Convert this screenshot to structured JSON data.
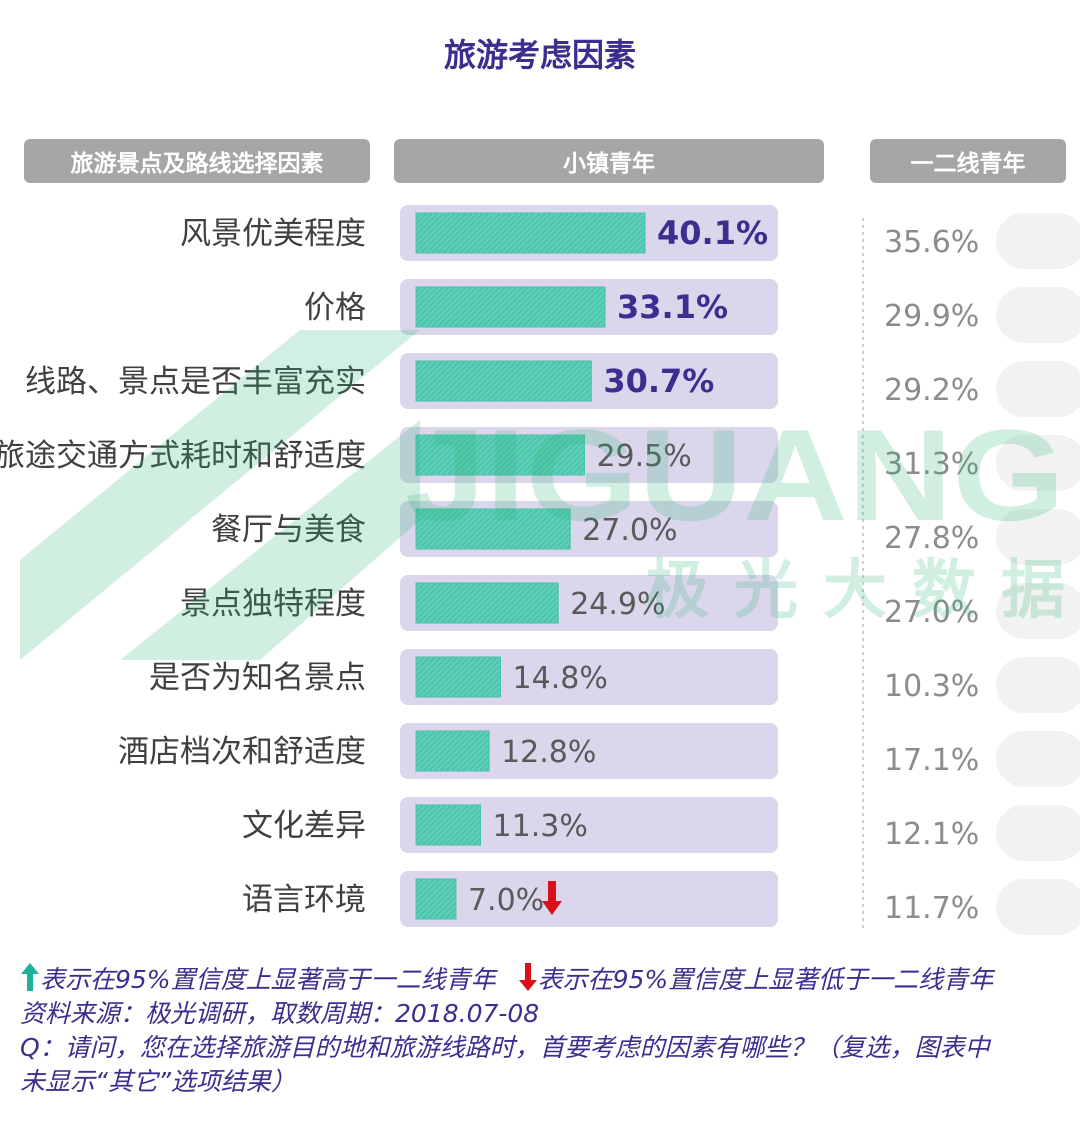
{
  "title": "旅游考虑因素",
  "headers": {
    "category": "旅游景点及路线选择因素",
    "series_a": "小镇青年",
    "series_b": "一二线青年"
  },
  "watermark": {
    "brand": "JIGUANG",
    "cn": "极 光 大 数 据"
  },
  "colors": {
    "bar_fill": "#5ccfb6",
    "track": "#dcd6ec",
    "accent": "#3d2d8f",
    "up_arrow": "#1bb39a",
    "down_arrow": "#d9101a"
  },
  "chart_data": {
    "type": "bar",
    "orientation": "horizontal",
    "categories": [
      "风景优美程度",
      "价格",
      "线路、景点是否丰富充实",
      "旅途交通方式耗时和舒适度",
      "餐厅与美食",
      "景点独特程度",
      "是否为知名景点",
      "酒店档次和舒适度",
      "文化差异",
      "语言环境"
    ],
    "series": [
      {
        "name": "小镇青年",
        "values": [
          40.1,
          33.1,
          30.7,
          29.5,
          27.0,
          24.9,
          14.8,
          12.8,
          11.3,
          7.0
        ],
        "labels": [
          "40.1%",
          "33.1%",
          "30.7%",
          "29.5%",
          "27.0%",
          "24.9%",
          "14.8%",
          "12.8%",
          "11.3%",
          "7.0%"
        ],
        "highlight": [
          true,
          true,
          true,
          false,
          false,
          false,
          false,
          false,
          false,
          false
        ],
        "significance": [
          null,
          null,
          null,
          null,
          null,
          null,
          null,
          null,
          null,
          "down"
        ]
      },
      {
        "name": "一二线青年",
        "values": [
          35.6,
          29.9,
          29.2,
          31.3,
          27.8,
          27.0,
          10.3,
          17.1,
          12.1,
          11.7
        ],
        "labels": [
          "35.6%",
          "29.9%",
          "29.2%",
          "31.3%",
          "27.8%",
          "27.0%",
          "10.3%",
          "17.1%",
          "12.1%",
          "11.7%"
        ]
      }
    ],
    "xlim": [
      0,
      65
    ],
    "unit": "%"
  },
  "notes": {
    "up_legend": "表示在95%置信度上显著高于一二线青年",
    "down_legend": "表示在95%置信度上显著低于一二线青年",
    "source": "资料来源：极光调研，取数周期：2018.07-08",
    "question_line1": "Q：请问，您在选择旅游目的地和旅游线路时，首要考虑的因素有哪些？（复选，图表中",
    "question_line2": "未显示“其它”选项结果）"
  }
}
